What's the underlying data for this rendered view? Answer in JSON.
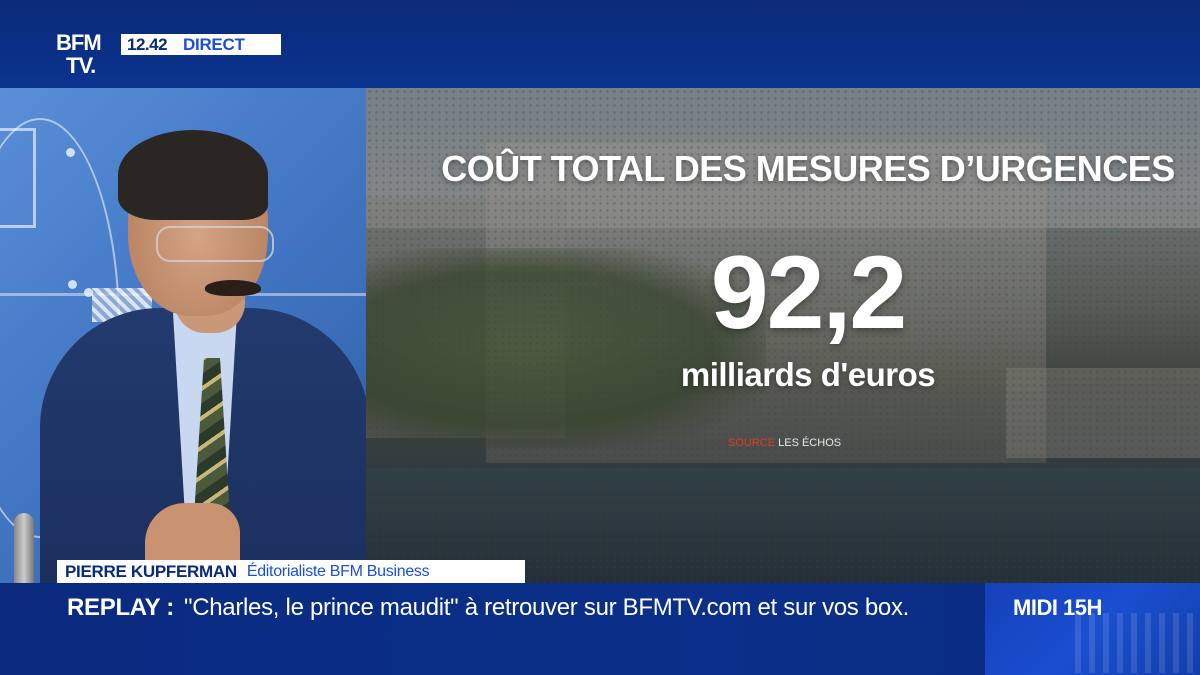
{
  "header": {
    "logo_line1": "BFM",
    "logo_line2": "TV.",
    "time": "12.42",
    "live_label": "DIRECT"
  },
  "infographic": {
    "title": "COÛT TOTAL DES MESURES D’URGENCES",
    "value": "92,2",
    "unit": "milliards d'euros",
    "source_label": "SOURCE",
    "source_value": "LES ÉCHOS"
  },
  "lower_third": {
    "name": "PIERRE KUPFERMAN",
    "role": "Éditorialiste BFM Business"
  },
  "ticker": {
    "label": "REPLAY :",
    "text": "\"Charles, le prince maudit\" à retrouver sur BFMTV.com et sur vos box.",
    "program": "MIDI 15H"
  },
  "colors": {
    "brand_blue": "#0a2a7a",
    "accent_blue": "#1d4fd6",
    "source_red": "#e23a2e"
  }
}
